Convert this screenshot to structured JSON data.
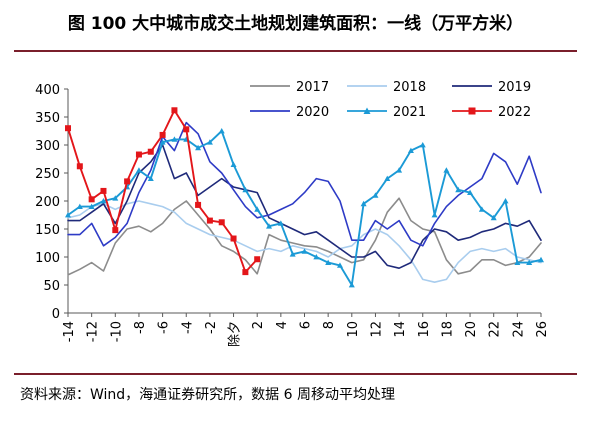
{
  "title": "图 100 大中城市成交土地规划建筑面积：一线（万平方米）",
  "source": "资料来源：Wind，海通证券研究所，数据 6 周移动平均处理",
  "colors": {
    "border": "#7a1f2b",
    "axis": "#595959"
  },
  "chart_data": {
    "type": "line",
    "title": "图 100 大中城市成交土地规划建筑面积：一线（万平方米）",
    "xlabel": "",
    "ylabel": "",
    "ylim": [
      0,
      400
    ],
    "xlim": [
      -14,
      26
    ],
    "y_ticks": [
      0,
      50,
      100,
      150,
      200,
      250,
      300,
      350,
      400
    ],
    "x_ticks": [
      "-14",
      "-12",
      "-10",
      "-8",
      "-6",
      "-4",
      "-2",
      "除夕",
      "2",
      "4",
      "6",
      "8",
      "10",
      "12",
      "14",
      "16",
      "18",
      "20",
      "22",
      "24",
      "26"
    ],
    "x_tick_values": [
      -14,
      -12,
      -10,
      -8,
      -6,
      -4,
      -2,
      0,
      2,
      4,
      6,
      8,
      10,
      12,
      14,
      16,
      18,
      20,
      22,
      24,
      26
    ],
    "grid": false,
    "legend_position": "top",
    "series": [
      {
        "name": "2017",
        "color": "#8c8c8c",
        "marker": "none",
        "x": [
          -14,
          -13,
          -12,
          -11,
          -10,
          -9,
          -8,
          -7,
          -6,
          -5,
          -4,
          -3,
          -2,
          -1,
          0,
          1,
          2,
          3,
          4,
          5,
          6,
          7,
          8,
          9,
          10,
          11,
          12,
          13,
          14,
          15,
          16,
          17,
          18,
          19,
          20,
          21,
          22,
          23,
          24,
          25,
          26
        ],
        "y": [
          68,
          78,
          90,
          75,
          125,
          150,
          155,
          145,
          160,
          185,
          200,
          175,
          150,
          120,
          110,
          95,
          70,
          140,
          130,
          125,
          120,
          118,
          110,
          100,
          90,
          95,
          130,
          180,
          205,
          165,
          150,
          145,
          95,
          70,
          75,
          95,
          95,
          85,
          90,
          100,
          125
        ]
      },
      {
        "name": "2018",
        "color": "#a9cdee",
        "marker": "none",
        "x": [
          -14,
          -13,
          -12,
          -11,
          -10,
          -9,
          -8,
          -7,
          -6,
          -5,
          -4,
          -3,
          -2,
          -1,
          0,
          1,
          2,
          3,
          4,
          5,
          6,
          7,
          8,
          9,
          10,
          11,
          12,
          13,
          14,
          15,
          16,
          17,
          18,
          19,
          20,
          21,
          22,
          23,
          24,
          25,
          26
        ],
        "y": [
          170,
          175,
          190,
          195,
          185,
          195,
          200,
          195,
          190,
          180,
          160,
          150,
          140,
          135,
          130,
          120,
          110,
          115,
          110,
          120,
          115,
          110,
          100,
          115,
          120,
          140,
          150,
          140,
          120,
          95,
          60,
          55,
          60,
          90,
          110,
          115,
          110,
          115,
          100,
          95,
          90
        ]
      },
      {
        "name": "2019",
        "color": "#1f2a7a",
        "marker": "none",
        "x": [
          -14,
          -13,
          -12,
          -11,
          -10,
          -9,
          -8,
          -7,
          -6,
          -5,
          -4,
          -3,
          -2,
          -1,
          0,
          1,
          2,
          3,
          4,
          5,
          6,
          7,
          8,
          9,
          10,
          11,
          12,
          13,
          14,
          15,
          16,
          17,
          18,
          19,
          20,
          21,
          22,
          23,
          24,
          25,
          26
        ],
        "y": [
          165,
          165,
          180,
          195,
          160,
          200,
          250,
          270,
          300,
          240,
          250,
          210,
          225,
          240,
          225,
          220,
          215,
          170,
          160,
          150,
          140,
          145,
          130,
          115,
          100,
          100,
          110,
          85,
          80,
          90,
          130,
          150,
          145,
          130,
          135,
          145,
          150,
          160,
          155,
          165,
          130
        ]
      },
      {
        "name": "2020",
        "color": "#2e3bc6",
        "marker": "none",
        "x": [
          -14,
          -13,
          -12,
          -11,
          -10,
          -9,
          -8,
          -7,
          -6,
          -5,
          -4,
          -3,
          -2,
          -1,
          0,
          1,
          2,
          3,
          4,
          5,
          6,
          7,
          8,
          9,
          10,
          11,
          12,
          13,
          14,
          15,
          16,
          17,
          18,
          19,
          20,
          21,
          22,
          23,
          24,
          25,
          26
        ],
        "y": [
          140,
          140,
          160,
          120,
          135,
          160,
          215,
          255,
          315,
          290,
          340,
          320,
          270,
          250,
          220,
          190,
          170,
          175,
          185,
          195,
          215,
          240,
          235,
          200,
          130,
          130,
          165,
          150,
          165,
          130,
          120,
          160,
          190,
          210,
          225,
          240,
          285,
          270,
          230,
          280,
          215
        ]
      },
      {
        "name": "2021",
        "color": "#1b9ad6",
        "marker": "triangle",
        "x": [
          -14,
          -13,
          -12,
          -11,
          -10,
          -9,
          -8,
          -7,
          -6,
          -5,
          -4,
          -3,
          -2,
          -1,
          0,
          1,
          2,
          3,
          4,
          5,
          6,
          7,
          8,
          9,
          10,
          11,
          12,
          13,
          14,
          15,
          16,
          17,
          18,
          19,
          20,
          21,
          22,
          23,
          24,
          25,
          26
        ],
        "y": [
          175,
          190,
          190,
          200,
          205,
          225,
          255,
          240,
          305,
          310,
          310,
          295,
          305,
          325,
          265,
          220,
          185,
          155,
          160,
          105,
          110,
          100,
          90,
          85,
          50,
          195,
          210,
          240,
          255,
          290,
          300,
          175,
          255,
          220,
          215,
          185,
          170,
          200,
          90,
          90,
          95
        ]
      },
      {
        "name": "2022",
        "color": "#e3161a",
        "marker": "square",
        "x": [
          -14,
          -13,
          -12,
          -11,
          -10,
          -9,
          -8,
          -7,
          -6,
          -5,
          -4,
          -3,
          -2,
          -1,
          0,
          1,
          2
        ],
        "y": [
          330,
          262,
          203,
          218,
          148,
          235,
          283,
          288,
          318,
          362,
          328,
          193,
          165,
          162,
          133,
          73,
          96
        ]
      }
    ]
  }
}
